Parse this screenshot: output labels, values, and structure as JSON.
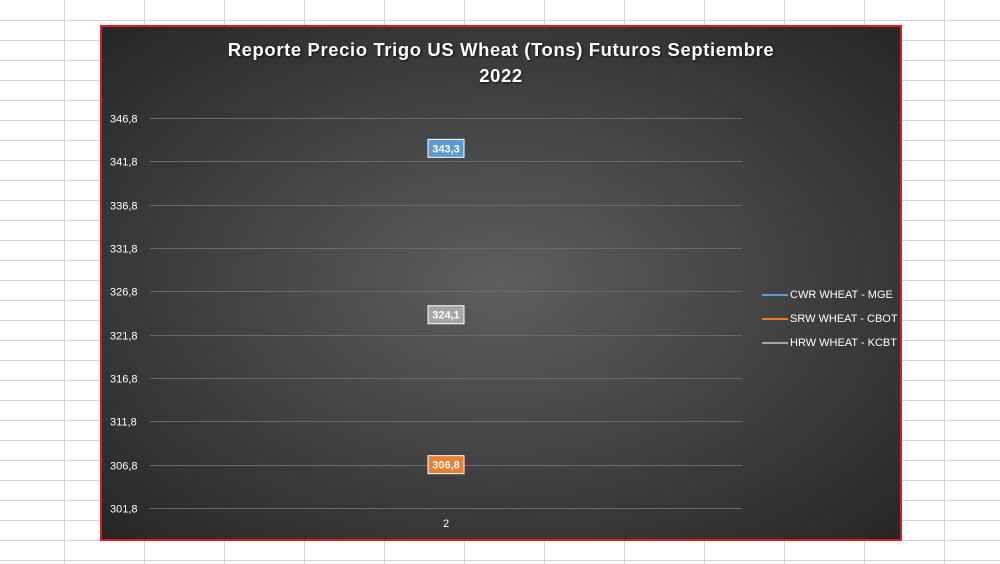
{
  "colors": {
    "chart_border": "#e11b22",
    "series_cwr": "#5b9bd5",
    "series_srw": "#ed7d31",
    "series_hrw": "#a5a5a5"
  },
  "chart_data": {
    "type": "line",
    "title_lines": [
      "Reporte Precio Trigo US Wheat (Tons) Futuros Septiembre",
      "2022"
    ],
    "categories": [
      "2"
    ],
    "series": [
      {
        "name": "CWR WHEAT - MGE",
        "values": [
          343.3
        ],
        "data_label": "343,3",
        "color": "#5b9bd5"
      },
      {
        "name": "SRW WHEAT - CBOT",
        "values": [
          306.8
        ],
        "data_label": "306,8",
        "color": "#ed7d31"
      },
      {
        "name": "HRW WHEAT - KCBT",
        "values": [
          324.1
        ],
        "data_label": "324,1",
        "color": "#a5a5a5"
      }
    ],
    "yticks": [
      346.8,
      341.8,
      336.8,
      331.8,
      326.8,
      321.8,
      316.8,
      311.8,
      306.8,
      301.8
    ],
    "ytick_labels": [
      "346,8",
      "341,8",
      "336,8",
      "331,8",
      "326,8",
      "321,8",
      "316,8",
      "311,8",
      "306,8",
      "301,8"
    ],
    "ylim": [
      301.8,
      346.8
    ],
    "xlabel": "",
    "ylabel": "",
    "grid": true,
    "legend_position": "right"
  }
}
